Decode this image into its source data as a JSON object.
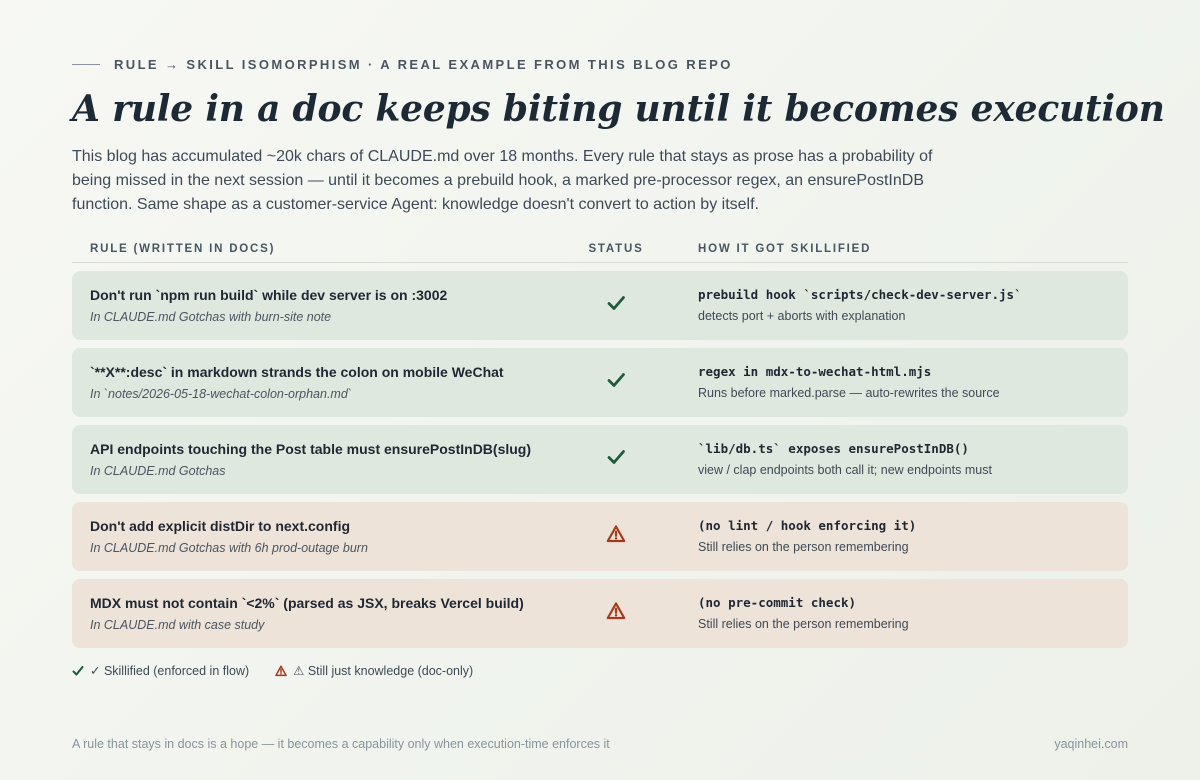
{
  "header": {
    "eyebrow": "Rule → Skill Isomorphism · A real example from this blog repo",
    "title": "A rule in a doc keeps biting until it becomes execution",
    "lede": "This blog has accumulated ~20k chars of CLAUDE.md over 18 months. Every rule that stays as prose has a probability of being missed in the next session — until it becomes a prebuild hook, a marked pre-processor regex, an ensurePostInDB function. Same shape as a customer-service Agent: knowledge doesn't convert to action by itself."
  },
  "table": {
    "columns": {
      "rule": "Rule (written in docs)",
      "status": "Status",
      "how": "How it got skillified"
    },
    "rows": [
      {
        "status": "ok",
        "status_icon": "check-icon",
        "rule": "Don't run `npm run build` while dev server is on :3002",
        "rule_note": "In CLAUDE.md Gotchas with burn-site note",
        "how": "prebuild hook `scripts/check-dev-server.js`",
        "how_note": "detects port + aborts with explanation"
      },
      {
        "status": "ok",
        "status_icon": "check-icon",
        "rule": "`**X**:desc` in markdown strands the colon on mobile WeChat",
        "rule_note": "In `notes/2026-05-18-wechat-colon-orphan.md`",
        "how": "regex in mdx-to-wechat-html.mjs",
        "how_note": "Runs before marked.parse — auto-rewrites the source"
      },
      {
        "status": "ok",
        "status_icon": "check-icon",
        "rule": "API endpoints touching the Post table must ensurePostInDB(slug)",
        "rule_note": "In CLAUDE.md Gotchas",
        "how": "`lib/db.ts` exposes ensurePostInDB()",
        "how_note": "view / clap endpoints both call it; new endpoints must"
      },
      {
        "status": "warn",
        "status_icon": "warning-icon",
        "rule": "Don't add explicit distDir to next.config",
        "rule_note": "In CLAUDE.md Gotchas with 6h prod-outage burn",
        "how": "(no lint / hook enforcing it)",
        "how_note": "Still relies on the person remembering"
      },
      {
        "status": "warn",
        "status_icon": "warning-icon",
        "rule": "MDX must not contain `<2%` (parsed as JSX, breaks Vercel build)",
        "rule_note": "In CLAUDE.md with case study",
        "how": "(no pre-commit check)",
        "how_note": "Still relies on the person remembering"
      }
    ]
  },
  "legend": {
    "skillified": "✓ Skillified (enforced in flow)",
    "knowledge": "⚠ Still just knowledge (doc-only)"
  },
  "footer": {
    "tagline": "A rule that stays in docs is a hope — it becomes a capability only when execution-time enforces it",
    "site": "yaqinhei.com"
  },
  "colors": {
    "ok_row": "#dfe8df",
    "warn_row": "#ede3d8",
    "check": "#1f5a3a",
    "warning": "#a83a1c"
  }
}
